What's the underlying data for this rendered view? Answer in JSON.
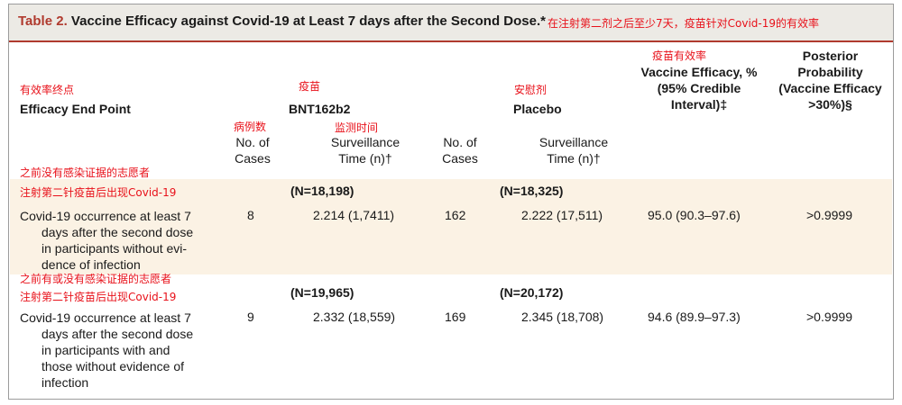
{
  "title": {
    "number": "Table 2.",
    "text": "Vaccine Efficacy against Covid-19 at Least 7 days after the Second Dose.*",
    "annotation": "在注射第二剂之后至少7天，疫苗针对Covid-19的有效率"
  },
  "annotations": {
    "endpoint": "有效率终点",
    "vaccine": "疫苗",
    "cases": "病例数",
    "surveillance": "监测时间",
    "placebo": "安慰剂",
    "efficacy": "疫苗有效率",
    "group1_line1": "之前没有感染证据的志愿者",
    "group1_line2": "注射第二针疫苗后出现Covid-19",
    "group2_line1": "之前有或没有感染证据的志愿者",
    "group2_line2": "注射第二针疫苗后出现Covid-19"
  },
  "headers": {
    "endpoint": "Efficacy End Point",
    "vaccine": "BNT162b2",
    "placebo": "Placebo",
    "cases": [
      "No. of",
      "Cases"
    ],
    "surveillance": [
      "Surveillance",
      "Time (n)†"
    ],
    "efficacy": [
      "Vaccine Efficacy, %",
      "(95% Credible",
      "Interval)‡"
    ],
    "posterior": [
      "Posterior",
      "Probability",
      "(Vaccine Efficacy",
      ">30%)§"
    ]
  },
  "rows": [
    {
      "vaccine_n": "(N=18,198)",
      "placebo_n": "(N=18,325)",
      "desc": [
        "Covid-19 occurrence at least 7",
        "days after the second dose",
        "in participants without evi-",
        "dence of infection"
      ],
      "vaccine_cases": "8",
      "vaccine_time": "2.214 (1,7411)",
      "placebo_cases": "162",
      "placebo_time": "2.222 (17,511)",
      "efficacy": "95.0 (90.3–97.6)",
      "posterior": ">0.9999"
    },
    {
      "vaccine_n": "(N=19,965)",
      "placebo_n": "(N=20,172)",
      "desc": [
        "Covid-19 occurrence at least 7",
        "days after the second dose",
        "in participants with and",
        "those without evidence of",
        "infection"
      ],
      "vaccine_cases": "9",
      "vaccine_time": "2.332 (18,559)",
      "placebo_cases": "169",
      "placebo_time": "2.345 (18,708)",
      "efficacy": "94.6 (89.9–97.3)",
      "posterior": ">0.9999"
    }
  ],
  "colors": {
    "accent": "#b03a2e",
    "annotation": "#e8111a",
    "title_bg": "#eceae5",
    "band_bg": "#fbf2e4"
  }
}
